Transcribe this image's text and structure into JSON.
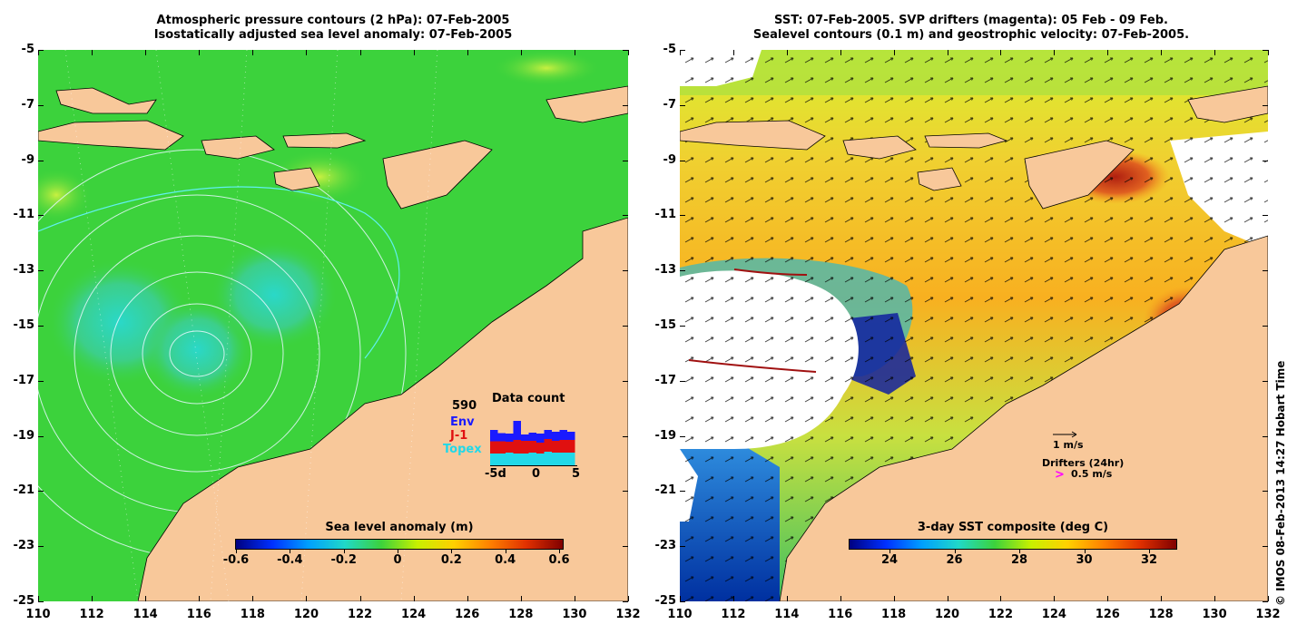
{
  "left_panel": {
    "title_line1": "Atmospheric pressure contours (2 hPa): 07-Feb-2005",
    "title_line2": "Isostatically adjusted sea level anomaly: 07-Feb-2005",
    "colorbar": {
      "title": "Sea level anomaly (m)",
      "ticks": [
        "-0.6",
        "-0.4",
        "-0.2",
        "0",
        "0.2",
        "0.4",
        "0.6"
      ]
    },
    "data_count": {
      "title": "Data count",
      "max_value": "590",
      "legend": [
        {
          "label": "Env",
          "color": "#1a1aff"
        },
        {
          "label": "J-1",
          "color": "#e01010"
        },
        {
          "label": "Topex",
          "color": "#22d8e8"
        }
      ],
      "x_ticks": [
        "-5d",
        "0",
        "5"
      ],
      "bars": [
        {
          "topex": 28,
          "j1": 27,
          "env": 25
        },
        {
          "topex": 28,
          "j1": 27,
          "env": 18
        },
        {
          "topex": 30,
          "j1": 24,
          "env": 18
        },
        {
          "topex": 28,
          "j1": 30,
          "env": 42
        },
        {
          "topex": 28,
          "j1": 28,
          "env": 14
        },
        {
          "topex": 30,
          "j1": 26,
          "env": 18
        },
        {
          "topex": 28,
          "j1": 24,
          "env": 20
        },
        {
          "topex": 32,
          "j1": 28,
          "env": 20
        },
        {
          "topex": 30,
          "j1": 26,
          "env": 20
        },
        {
          "topex": 30,
          "j1": 28,
          "env": 22
        },
        {
          "topex": 30,
          "j1": 28,
          "env": 18
        }
      ]
    }
  },
  "right_panel": {
    "title_line1": "SST: 07-Feb-2005. SVP drifters (magenta): 05 Feb - 09 Feb.",
    "title_line2": "Sealevel contours (0.1 m) and geostrophic velocity: 07-Feb-2005.",
    "colorbar": {
      "title": "3-day SST composite (deg C)",
      "ticks": [
        "24",
        "26",
        "28",
        "30",
        "32"
      ]
    },
    "velocity_legend": "1 m/s",
    "drifter_legend_title": "Drifters (24hr)",
    "drifter_legend_value": "0.5 m/s",
    "drifter_symbol": ">"
  },
  "axes": {
    "y_ticks": [
      "-5",
      "-7",
      "-9",
      "-11",
      "-13",
      "-15",
      "-17",
      "-19",
      "-21",
      "-23",
      "-25"
    ],
    "x_ticks": [
      "110",
      "112",
      "114",
      "116",
      "118",
      "120",
      "122",
      "124",
      "126",
      "128",
      "130",
      "132"
    ],
    "lat_range": [
      -25,
      -5
    ],
    "lon_range": [
      110,
      132
    ]
  },
  "colors": {
    "land": "#f8c89a",
    "ocean_left": "#3cd23c",
    "cloud": "#ffffff",
    "drifter": "#ff00ff"
  },
  "credit": "© IMOS 08-Feb-2013 14:27 Hobart Time"
}
